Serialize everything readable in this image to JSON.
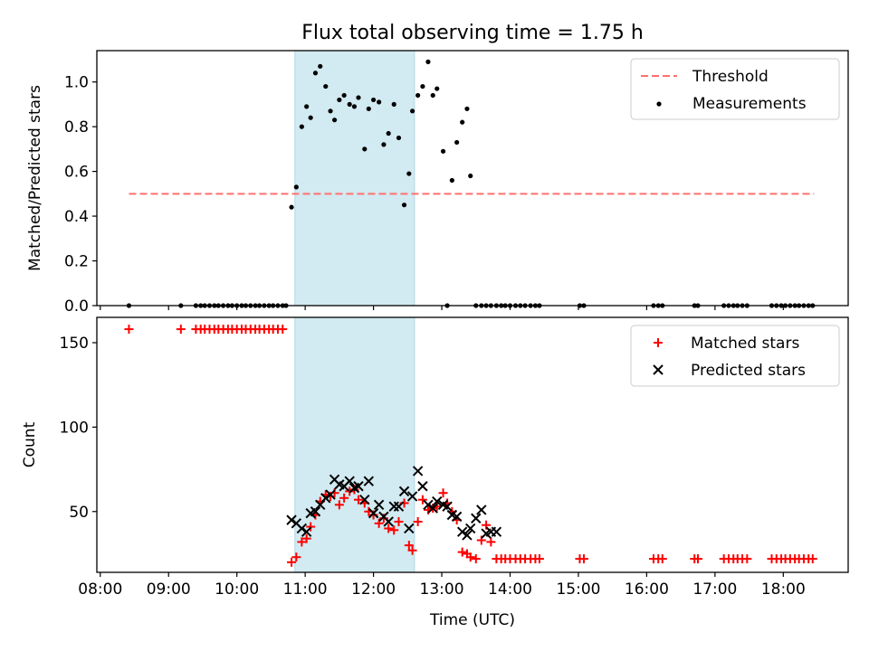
{
  "title": "Flux total observing time = 1.75 h",
  "xlabel": "Time (UTC)",
  "colors": {
    "threshold": "#ff7070",
    "measurements": "#000000",
    "matched": "#ff0000",
    "predicted": "#000000",
    "span_fill": "#add8e6"
  },
  "chart_data": [
    {
      "type": "scatter",
      "ylabel": "Matched/Predicted stars",
      "xlim": [
        7.95,
        18.95
      ],
      "ylim": [
        0,
        1.14
      ],
      "yticks": [
        0.0,
        0.2,
        0.4,
        0.6,
        0.8,
        1.0
      ],
      "ytick_labels": [
        "0.0",
        "0.2",
        "0.4",
        "0.6",
        "0.8",
        "1.0"
      ],
      "shaded_span": [
        10.85,
        12.6
      ],
      "legend": {
        "position": "top-right",
        "entries": [
          "Threshold",
          "Measurements"
        ]
      },
      "series": [
        {
          "name": "Threshold",
          "kind": "dashed-line",
          "x": [
            8.42,
            18.45
          ],
          "y": [
            0.5,
            0.5
          ]
        },
        {
          "name": "Measurements",
          "kind": "scatter",
          "x": [
            8.42,
            9.18,
            9.4,
            9.47,
            9.53,
            9.6,
            9.67,
            9.73,
            9.8,
            9.87,
            9.93,
            10.0,
            10.07,
            10.13,
            10.2,
            10.27,
            10.33,
            10.4,
            10.47,
            10.53,
            10.6,
            10.67,
            10.72,
            10.8,
            10.87,
            10.95,
            11.02,
            11.08,
            11.15,
            11.22,
            11.3,
            11.37,
            11.43,
            11.5,
            11.57,
            11.65,
            11.72,
            11.78,
            11.87,
            11.93,
            12.0,
            12.08,
            12.15,
            12.22,
            12.3,
            12.37,
            12.45,
            12.52,
            12.57,
            12.65,
            12.72,
            12.8,
            12.87,
            12.93,
            13.02,
            13.08,
            13.15,
            13.22,
            13.3,
            13.37,
            13.42,
            13.5,
            13.58,
            13.65,
            13.72,
            13.8,
            13.87,
            13.93,
            14.0,
            14.08,
            14.15,
            14.22,
            14.3,
            14.37,
            14.43,
            15.02,
            15.08,
            16.1,
            16.17,
            16.23,
            16.7,
            16.75,
            17.13,
            17.2,
            17.27,
            17.33,
            17.4,
            17.47,
            17.83,
            17.9,
            17.97,
            18.03,
            18.1,
            18.17,
            18.23,
            18.3,
            18.37,
            18.43
          ],
          "y": [
            0,
            0,
            0,
            0,
            0,
            0,
            0,
            0,
            0,
            0,
            0,
            0,
            0,
            0,
            0,
            0,
            0,
            0,
            0,
            0,
            0,
            0,
            0,
            0.44,
            0.53,
            0.8,
            0.89,
            0.84,
            1.04,
            1.07,
            0.98,
            0.87,
            0.83,
            0.92,
            0.94,
            0.9,
            0.89,
            0.93,
            0.7,
            0.88,
            0.92,
            0.91,
            0.72,
            0.77,
            0.9,
            0.75,
            0.45,
            0.59,
            0.87,
            0.94,
            0.98,
            1.09,
            0.94,
            0.97,
            0.69,
            0,
            0.56,
            0.73,
            0.82,
            0.88,
            0.58,
            0,
            0,
            0,
            0,
            0,
            0,
            0,
            0,
            0,
            0,
            0,
            0,
            0,
            0,
            0,
            0,
            0,
            0,
            0,
            0,
            0,
            0,
            0,
            0,
            0,
            0,
            0,
            0,
            0,
            0,
            0,
            0,
            0,
            0,
            0,
            0,
            0
          ]
        }
      ]
    },
    {
      "type": "scatter",
      "ylabel": "Count",
      "xlim": [
        7.95,
        18.95
      ],
      "ylim": [
        14,
        165
      ],
      "yticks": [
        50,
        100,
        150
      ],
      "ytick_labels": [
        "50",
        "100",
        "150"
      ],
      "xticks": [
        8,
        9,
        10,
        11,
        12,
        13,
        14,
        15,
        16,
        17,
        18
      ],
      "xtick_labels": [
        "08:00",
        "09:00",
        "10:00",
        "11:00",
        "12:00",
        "13:00",
        "14:00",
        "15:00",
        "16:00",
        "17:00",
        "18:00"
      ],
      "shaded_span": [
        10.85,
        12.6
      ],
      "legend": {
        "position": "top-right",
        "entries": [
          "Matched stars",
          "Predicted stars"
        ]
      },
      "series": [
        {
          "name": "Matched stars",
          "marker": "plus",
          "x": [
            8.42,
            9.18,
            9.4,
            9.47,
            9.53,
            9.6,
            9.67,
            9.73,
            9.8,
            9.87,
            9.93,
            10.0,
            10.07,
            10.13,
            10.2,
            10.27,
            10.33,
            10.4,
            10.47,
            10.53,
            10.6,
            10.67,
            10.8,
            10.87,
            10.95,
            11.02,
            11.08,
            11.15,
            11.22,
            11.3,
            11.37,
            11.43,
            11.5,
            11.57,
            11.65,
            11.72,
            11.78,
            11.87,
            11.93,
            12.0,
            12.08,
            12.15,
            12.22,
            12.3,
            12.37,
            12.45,
            12.52,
            12.57,
            12.65,
            12.72,
            12.8,
            12.87,
            12.93,
            13.02,
            13.08,
            13.15,
            13.22,
            13.3,
            13.37,
            13.42,
            13.5,
            13.58,
            13.65,
            13.72,
            13.8,
            13.87,
            13.93,
            14.0,
            14.08,
            14.15,
            14.22,
            14.3,
            14.37,
            14.43,
            15.02,
            15.08,
            16.1,
            16.17,
            16.23,
            16.7,
            16.75,
            17.13,
            17.2,
            17.27,
            17.33,
            17.4,
            17.47,
            17.83,
            17.9,
            17.97,
            18.03,
            18.1,
            18.17,
            18.23,
            18.3,
            18.37,
            18.43
          ],
          "y": [
            158,
            158,
            158,
            158,
            158,
            158,
            158,
            158,
            158,
            158,
            158,
            158,
            158,
            158,
            158,
            158,
            158,
            158,
            158,
            158,
            158,
            158,
            20,
            23,
            32,
            34,
            41,
            48,
            56,
            60,
            59,
            61,
            54,
            58,
            62,
            63,
            57,
            55,
            50,
            48,
            43,
            46,
            40,
            39,
            44,
            55,
            30,
            27,
            44,
            57,
            51,
            52,
            53,
            61,
            55,
            50,
            45,
            26,
            25,
            23,
            22,
            33,
            42,
            32,
            22,
            22,
            22,
            22,
            22,
            22,
            22,
            22,
            22,
            22,
            22,
            22,
            22,
            22,
            22,
            22,
            22,
            22,
            22,
            22,
            22,
            22,
            22,
            22,
            22,
            22,
            22,
            22,
            22,
            22,
            22,
            22,
            22
          ]
        },
        {
          "name": "Predicted stars",
          "marker": "x",
          "x": [
            10.8,
            10.87,
            10.95,
            11.02,
            11.08,
            11.15,
            11.22,
            11.3,
            11.37,
            11.43,
            11.5,
            11.57,
            11.65,
            11.72,
            11.78,
            11.87,
            11.93,
            12.0,
            12.08,
            12.15,
            12.22,
            12.3,
            12.37,
            12.45,
            12.52,
            12.57,
            12.65,
            12.72,
            12.8,
            12.87,
            12.93,
            13.02,
            13.08,
            13.15,
            13.22,
            13.3,
            13.37,
            13.42,
            13.5,
            13.58,
            13.65,
            13.72,
            13.8
          ],
          "y": [
            45,
            43,
            40,
            38,
            49,
            50,
            54,
            58,
            60,
            69,
            66,
            65,
            68,
            64,
            65,
            57,
            68,
            49,
            54,
            47,
            44,
            53,
            53,
            62,
            40,
            59,
            74,
            65,
            54,
            52,
            56,
            54,
            53,
            48,
            47,
            38,
            36,
            40,
            46,
            51,
            37,
            38,
            38
          ]
        }
      ]
    }
  ]
}
